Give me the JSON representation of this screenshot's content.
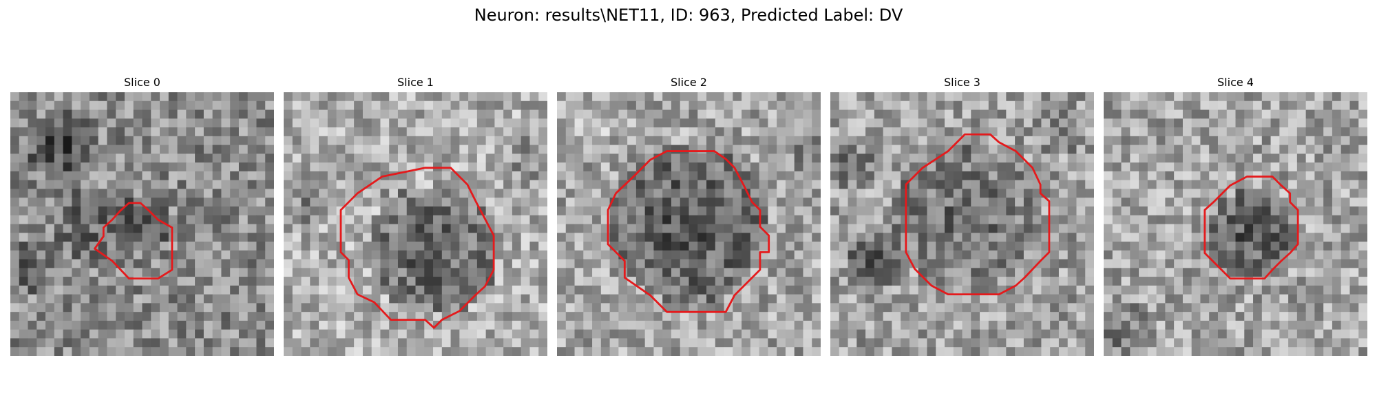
{
  "figure": {
    "title": "Neuron: results\\NET11, ID: 963, Predicted Label: DV"
  },
  "colors": {
    "contour": "#e41a1c",
    "background": "#ffffff"
  },
  "panels": [
    {
      "title": "Slice 0"
    },
    {
      "title": "Slice 1"
    },
    {
      "title": "Slice 2"
    },
    {
      "title": "Slice 3"
    },
    {
      "title": "Slice 4"
    }
  ]
}
